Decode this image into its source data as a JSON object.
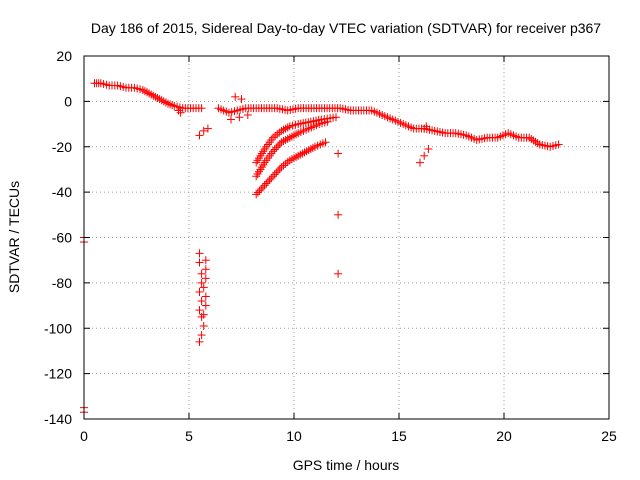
{
  "chart_data": {
    "type": "scatter",
    "title": "Day 186 of 2015, Sidereal Day-to-day VTEC variation (SDTVAR) for receiver p367",
    "xlabel": "GPS time / hours",
    "ylabel": "SDTVAR / TECUs",
    "xlim": [
      0,
      25
    ],
    "ylim": [
      -140,
      20
    ],
    "xticks": [
      0,
      5,
      10,
      15,
      20,
      25
    ],
    "yticks": [
      20,
      0,
      -20,
      -40,
      -60,
      -80,
      -100,
      -120,
      -140
    ],
    "grid": true,
    "marker": "+",
    "color": "#ff0000",
    "series": [
      {
        "name": "main-band",
        "points": [
          [
            0.5,
            8
          ],
          [
            0.8,
            8
          ],
          [
            1.2,
            7
          ],
          [
            1.6,
            7
          ],
          [
            2.0,
            6
          ],
          [
            2.4,
            6
          ],
          [
            2.8,
            5
          ],
          [
            3.2,
            3
          ],
          [
            3.6,
            1
          ],
          [
            4.0,
            -1
          ],
          [
            4.3,
            -2
          ],
          [
            4.7,
            -3
          ],
          [
            5.2,
            -3
          ],
          [
            5.6,
            -3
          ],
          [
            6.4,
            -3
          ],
          [
            6.9,
            -5
          ],
          [
            7.3,
            -4
          ],
          [
            7.7,
            -3
          ],
          [
            8.2,
            -3
          ],
          [
            8.7,
            -3
          ],
          [
            9.2,
            -3
          ],
          [
            9.7,
            -4
          ],
          [
            10.2,
            -3
          ],
          [
            10.7,
            -3
          ],
          [
            11.2,
            -3
          ],
          [
            11.7,
            -3
          ],
          [
            12.2,
            -3
          ],
          [
            12.7,
            -4
          ],
          [
            13.2,
            -4
          ],
          [
            13.7,
            -4
          ],
          [
            14.2,
            -6
          ],
          [
            14.7,
            -8
          ],
          [
            15.2,
            -10
          ],
          [
            15.7,
            -12
          ],
          [
            16.2,
            -12
          ],
          [
            16.7,
            -13
          ],
          [
            17.2,
            -14
          ],
          [
            17.7,
            -14
          ],
          [
            18.2,
            -15
          ],
          [
            18.7,
            -17
          ],
          [
            19.2,
            -16
          ],
          [
            19.7,
            -16
          ],
          [
            20.2,
            -14
          ],
          [
            20.7,
            -16
          ],
          [
            21.2,
            -16
          ],
          [
            21.7,
            -19
          ],
          [
            22.2,
            -20
          ],
          [
            22.6,
            -19
          ]
        ]
      },
      {
        "name": "rising-arcs",
        "points": [
          [
            8.2,
            -41
          ],
          [
            8.6,
            -37
          ],
          [
            9.0,
            -33
          ],
          [
            9.4,
            -29
          ],
          [
            9.8,
            -26
          ],
          [
            10.2,
            -24
          ],
          [
            10.6,
            -22
          ],
          [
            11.0,
            -20
          ],
          [
            11.5,
            -18
          ],
          [
            8.2,
            -33
          ],
          [
            8.6,
            -27
          ],
          [
            9.0,
            -22
          ],
          [
            9.4,
            -18
          ],
          [
            9.8,
            -16
          ],
          [
            10.2,
            -14
          ],
          [
            10.7,
            -12
          ],
          [
            11.2,
            -10
          ],
          [
            11.6,
            -9
          ],
          [
            8.2,
            -27
          ],
          [
            8.6,
            -21
          ],
          [
            9.0,
            -16
          ],
          [
            9.4,
            -13
          ],
          [
            9.8,
            -11
          ],
          [
            10.2,
            -10
          ],
          [
            10.8,
            -9
          ],
          [
            11.3,
            -8
          ],
          [
            12.0,
            -7
          ]
        ]
      },
      {
        "name": "misc-segments",
        "points": [
          [
            5.5,
            -15
          ],
          [
            5.7,
            -13
          ],
          [
            5.9,
            -12
          ],
          [
            7.0,
            -8
          ],
          [
            7.4,
            -7
          ],
          [
            7.8,
            -6
          ],
          [
            7.2,
            2
          ],
          [
            7.5,
            1
          ],
          [
            16.0,
            -27
          ],
          [
            16.2,
            -24
          ],
          [
            16.4,
            -21
          ],
          [
            16.2,
            -12
          ],
          [
            16.3,
            -11
          ],
          [
            0,
            -60
          ],
          [
            0,
            -62
          ],
          [
            0,
            -135
          ],
          [
            0,
            -137
          ],
          [
            12.1,
            -23
          ],
          [
            12.1,
            -50
          ],
          [
            12.1,
            -76
          ],
          [
            4.5,
            -4
          ],
          [
            4.6,
            -5
          ]
        ]
      },
      {
        "name": "outlier-column",
        "points": [
          [
            5.5,
            -67
          ],
          [
            5.5,
            -71
          ],
          [
            5.6,
            -76
          ],
          [
            5.6,
            -80
          ],
          [
            5.5,
            -84
          ],
          [
            5.6,
            -88
          ],
          [
            5.5,
            -92
          ],
          [
            5.6,
            -95
          ],
          [
            5.7,
            -99
          ],
          [
            5.6,
            -103
          ],
          [
            5.5,
            -106
          ],
          [
            5.8,
            -70
          ],
          [
            5.8,
            -74
          ],
          [
            5.8,
            -78
          ],
          [
            5.7,
            -82
          ],
          [
            5.8,
            -86
          ],
          [
            5.8,
            -90
          ],
          [
            5.7,
            -94
          ]
        ]
      }
    ]
  }
}
